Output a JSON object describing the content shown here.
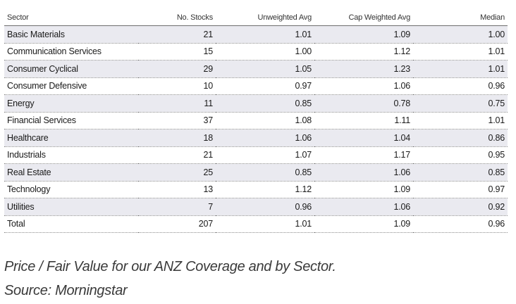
{
  "table": {
    "headers": {
      "sector": "Sector",
      "stocks": "No. Stocks",
      "unweighted": "Unweighted Avg",
      "cap_weighted": "Cap Weighted Avg",
      "median": "Median"
    },
    "rows": [
      {
        "sector": "Basic Materials",
        "stocks": "21",
        "unweighted": "1.01",
        "cap_weighted": "1.09",
        "median": "1.00"
      },
      {
        "sector": "Communication Services",
        "stocks": "15",
        "unweighted": "1.00",
        "cap_weighted": "1.12",
        "median": "1.01"
      },
      {
        "sector": "Consumer Cyclical",
        "stocks": "29",
        "unweighted": "1.05",
        "cap_weighted": "1.23",
        "median": "1.01"
      },
      {
        "sector": "Consumer Defensive",
        "stocks": "10",
        "unweighted": "0.97",
        "cap_weighted": "1.06",
        "median": "0.96"
      },
      {
        "sector": "Energy",
        "stocks": "11",
        "unweighted": "0.85",
        "cap_weighted": "0.78",
        "median": "0.75"
      },
      {
        "sector": "Financial Services",
        "stocks": "37",
        "unweighted": "1.08",
        "cap_weighted": "1.11",
        "median": "1.01"
      },
      {
        "sector": "Healthcare",
        "stocks": "18",
        "unweighted": "1.06",
        "cap_weighted": "1.04",
        "median": "0.86"
      },
      {
        "sector": "Industrials",
        "stocks": "21",
        "unweighted": "1.07",
        "cap_weighted": "1.17",
        "median": "0.95"
      },
      {
        "sector": "Real Estate",
        "stocks": "25",
        "unweighted": "0.85",
        "cap_weighted": "1.06",
        "median": "0.85"
      },
      {
        "sector": "Technology",
        "stocks": "13",
        "unweighted": "1.12",
        "cap_weighted": "1.09",
        "median": "0.97"
      },
      {
        "sector": "Utilities",
        "stocks": "7",
        "unweighted": "0.96",
        "cap_weighted": "1.06",
        "median": "0.92"
      },
      {
        "sector": "Total",
        "stocks": "207",
        "unweighted": "1.01",
        "cap_weighted": "1.09",
        "median": "0.96"
      }
    ]
  },
  "caption": {
    "line1": "Price / Fair Value for our ANZ Coverage and by Sector.",
    "line2": "Source: Morningstar"
  },
  "colors": {
    "shaded_row": "#eaeaf0",
    "header_rule": "#6e6e6e",
    "row_divider": "#8a8a8a"
  }
}
